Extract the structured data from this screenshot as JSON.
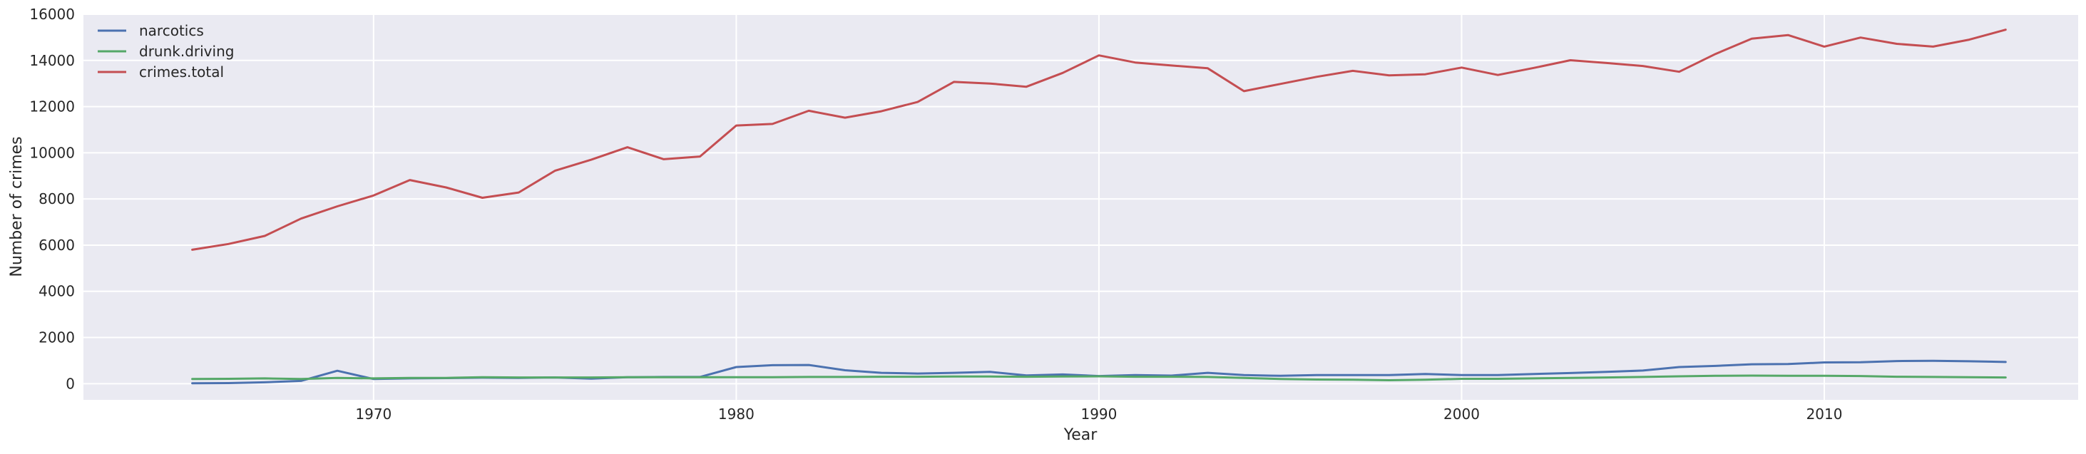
{
  "chart_data": {
    "type": "line",
    "title": "",
    "xlabel": "Year",
    "ylabel": "Number of crimes",
    "xlim": [
      1962,
      2017
    ],
    "ylim": [
      -700,
      16000
    ],
    "x_ticks": [
      1970,
      1980,
      1990,
      2000,
      2010
    ],
    "y_ticks": [
      0,
      2000,
      4000,
      6000,
      8000,
      10000,
      12000,
      14000,
      16000
    ],
    "grid": true,
    "legend_position": "top-left",
    "x": [
      1965,
      1966,
      1967,
      1968,
      1969,
      1970,
      1971,
      1972,
      1973,
      1974,
      1975,
      1976,
      1977,
      1978,
      1979,
      1980,
      1981,
      1982,
      1983,
      1984,
      1985,
      1986,
      1987,
      1988,
      1989,
      1990,
      1991,
      1992,
      1993,
      1994,
      1995,
      1996,
      1997,
      1998,
      1999,
      2000,
      2001,
      2002,
      2003,
      2004,
      2005,
      2006,
      2007,
      2008,
      2009,
      2010,
      2011,
      2012,
      2013,
      2014,
      2015
    ],
    "series": [
      {
        "name": "narcotics",
        "color": "#4c72b0",
        "values": [
          20,
          25,
          60,
          120,
          560,
          200,
          230,
          240,
          260,
          250,
          270,
          220,
          280,
          290,
          290,
          720,
          800,
          810,
          580,
          470,
          440,
          470,
          510,
          360,
          400,
          330,
          370,
          350,
          470,
          370,
          340,
          370,
          370,
          370,
          420,
          370,
          370,
          420,
          460,
          510,
          570,
          720,
          770,
          840,
          850,
          920,
          930,
          980,
          990,
          970,
          940
        ]
      },
      {
        "name": "drunk.driving",
        "color": "#55a868",
        "values": [
          200,
          210,
          230,
          200,
          250,
          230,
          250,
          250,
          280,
          270,
          270,
          270,
          280,
          280,
          280,
          280,
          280,
          290,
          290,
          300,
          300,
          310,
          310,
          300,
          310,
          320,
          300,
          300,
          290,
          250,
          200,
          180,
          170,
          150,
          170,
          210,
          210,
          230,
          250,
          270,
          290,
          320,
          340,
          350,
          340,
          340,
          330,
          300,
          290,
          280,
          270
        ]
      },
      {
        "name": "crimes.total",
        "color": "#c44e52",
        "values": [
          5800,
          6050,
          6400,
          7150,
          7680,
          8150,
          8820,
          8500,
          8050,
          8280,
          9220,
          9700,
          10240,
          9720,
          9840,
          11180,
          11250,
          11820,
          11520,
          11800,
          12200,
          13070,
          13000,
          12860,
          13460,
          14220,
          13910,
          13780,
          13660,
          12670,
          12980,
          13290,
          13550,
          13350,
          13400,
          13690,
          13370,
          13680,
          14010,
          13890,
          13760,
          13510,
          14280,
          14940,
          15100,
          14600,
          14990,
          14720,
          14600,
          14900,
          15330
        ]
      }
    ]
  }
}
